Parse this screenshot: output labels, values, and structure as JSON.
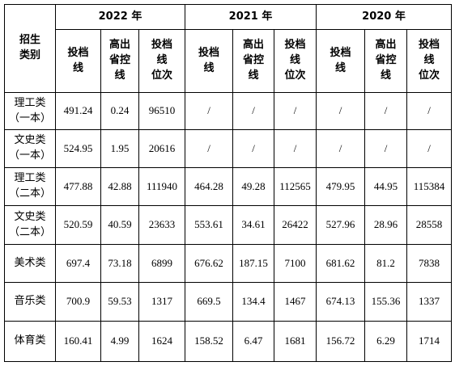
{
  "table": {
    "corner": "招生\n类别",
    "years": [
      {
        "label": "2022 年",
        "columns": [
          "投档\n线",
          "高出\n省控\n线",
          "投档\n线\n位次"
        ]
      },
      {
        "label": "2021 年",
        "columns": [
          "投档\n线",
          "高出\n省控\n线",
          "投档\n线\n位次"
        ]
      },
      {
        "label": "2020 年",
        "columns": [
          "投档\n线",
          "高出\n省控\n线",
          "投档\n线\n位次"
        ]
      }
    ],
    "rows": [
      {
        "label": "理工类\n（一本）",
        "cells": [
          "491.24",
          "0.24",
          "96510",
          "/",
          "/",
          "/",
          "/",
          "/",
          "/"
        ]
      },
      {
        "label": "文史类\n（一本）",
        "cells": [
          "524.95",
          "1.95",
          "20616",
          "/",
          "/",
          "/",
          "/",
          "/",
          "/"
        ]
      },
      {
        "label": "理工类\n（二本）",
        "cells": [
          "477.88",
          "42.88",
          "111940",
          "464.28",
          "49.28",
          "112565",
          "479.95",
          "44.95",
          "115384"
        ]
      },
      {
        "label": "文史类\n（二本）",
        "cells": [
          "520.59",
          "40.59",
          "23633",
          "553.61",
          "34.61",
          "26422",
          "527.96",
          "28.96",
          "28558"
        ]
      },
      {
        "label": "美术类",
        "cells": [
          "697.4",
          "73.18",
          "6899",
          "676.62",
          "187.15",
          "7100",
          "681.62",
          "81.2",
          "7838"
        ]
      },
      {
        "label": "音乐类",
        "cells": [
          "700.9",
          "59.53",
          "1317",
          "669.5",
          "134.4",
          "1467",
          "674.13",
          "155.36",
          "1337"
        ]
      },
      {
        "label": "体育类",
        "cells": [
          "160.41",
          "4.99",
          "1624",
          "158.52",
          "6.47",
          "1681",
          "156.72",
          "6.29",
          "1714"
        ]
      }
    ]
  }
}
